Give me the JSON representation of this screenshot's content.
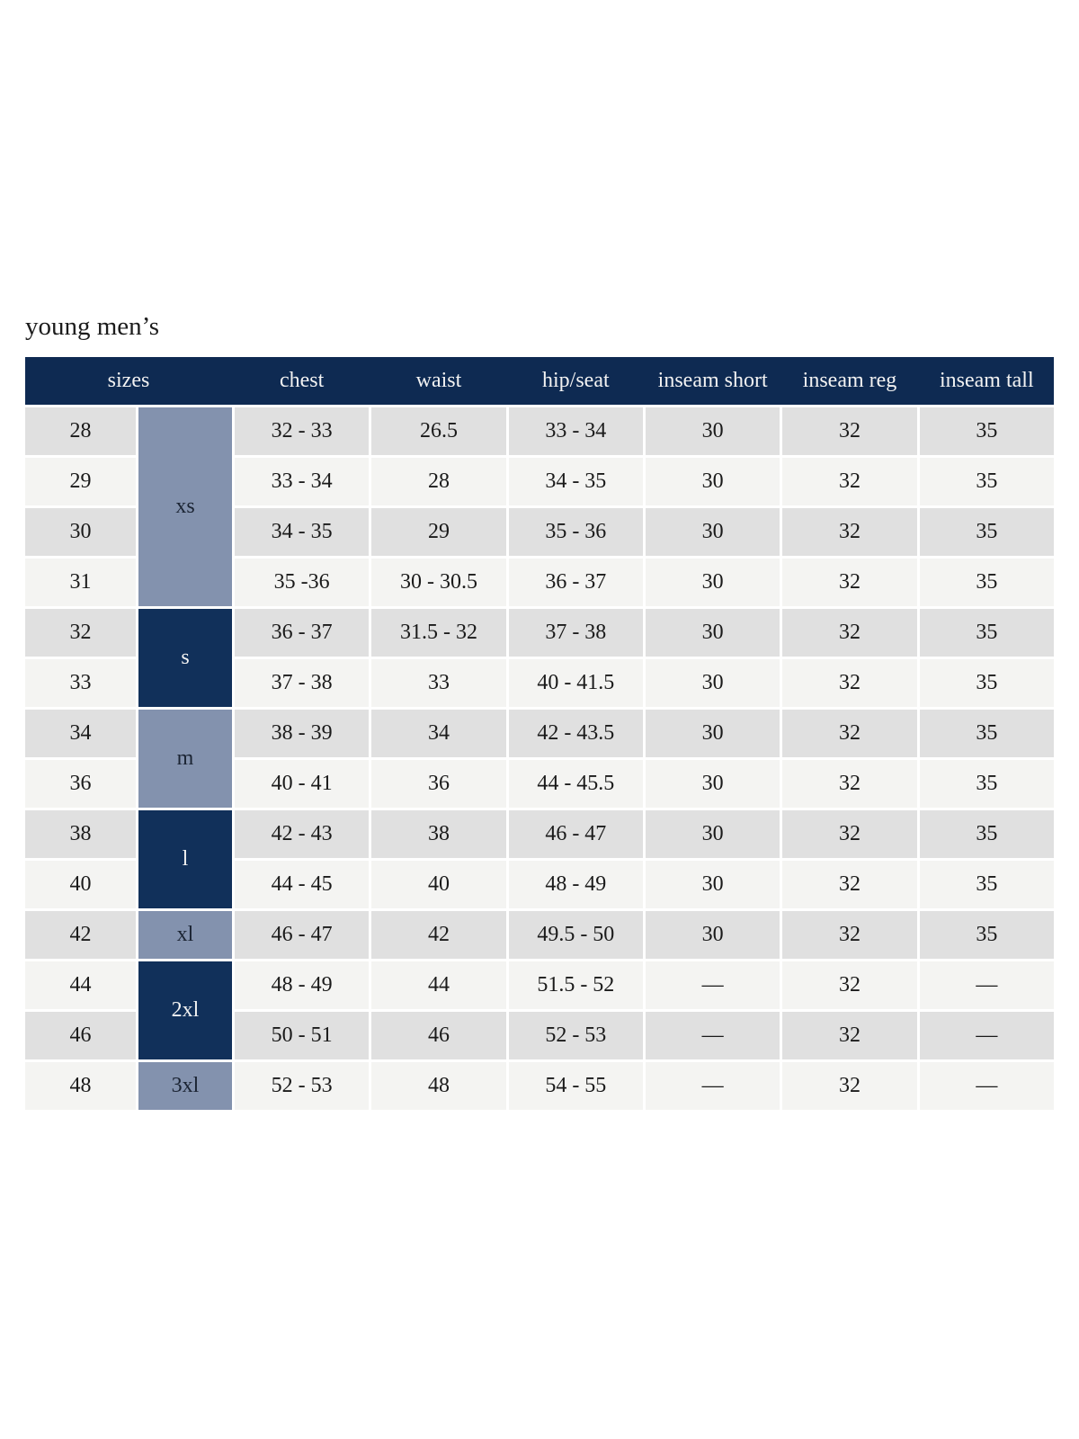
{
  "page": {
    "title": "young men’s"
  },
  "colors": {
    "header_navy": "#0e2a52",
    "group_navy": "#11305a",
    "group_steel_blue": "#8392ae",
    "row_stripe_gray": "#e0e0e0",
    "row_stripe_light": "#f4f4f2",
    "header_text": "#f2f2f2",
    "body_text": "#1a1a1a",
    "page_background": "#ffffff"
  },
  "table": {
    "header": {
      "sizes_label": "sizes",
      "measure_columns": [
        "chest",
        "waist",
        "hip/seat",
        "inseam short",
        "inseam reg",
        "inseam tall"
      ]
    },
    "column_keys": [
      "chest",
      "waist",
      "hip_seat",
      "inseam_short",
      "inseam_reg",
      "inseam_tall"
    ],
    "size_groups": [
      {
        "label": "xs",
        "row_span": 4,
        "style": "steel"
      },
      {
        "label": "s",
        "row_span": 2,
        "style": "navy"
      },
      {
        "label": "m",
        "row_span": 2,
        "style": "steel"
      },
      {
        "label": "l",
        "row_span": 2,
        "style": "navy"
      },
      {
        "label": "xl",
        "row_span": 1,
        "style": "steel"
      },
      {
        "label": "2xl",
        "row_span": 2,
        "style": "navy"
      },
      {
        "label": "3xl",
        "row_span": 1,
        "style": "steel"
      }
    ],
    "rows": [
      {
        "size": "28",
        "chest": "32 - 33",
        "waist": "26.5",
        "hip_seat": "33 - 34",
        "inseam_short": "30",
        "inseam_reg": "32",
        "inseam_tall": "35"
      },
      {
        "size": "29",
        "chest": "33 - 34",
        "waist": "28",
        "hip_seat": "34 - 35",
        "inseam_short": "30",
        "inseam_reg": "32",
        "inseam_tall": "35"
      },
      {
        "size": "30",
        "chest": "34 - 35",
        "waist": "29",
        "hip_seat": "35 - 36",
        "inseam_short": "30",
        "inseam_reg": "32",
        "inseam_tall": "35"
      },
      {
        "size": "31",
        "chest": "35 -36",
        "waist": "30 - 30.5",
        "hip_seat": "36 - 37",
        "inseam_short": "30",
        "inseam_reg": "32",
        "inseam_tall": "35"
      },
      {
        "size": "32",
        "chest": "36 - 37",
        "waist": "31.5 - 32",
        "hip_seat": "37 - 38",
        "inseam_short": "30",
        "inseam_reg": "32",
        "inseam_tall": "35"
      },
      {
        "size": "33",
        "chest": "37 - 38",
        "waist": "33",
        "hip_seat": "40 - 41.5",
        "inseam_short": "30",
        "inseam_reg": "32",
        "inseam_tall": "35"
      },
      {
        "size": "34",
        "chest": "38 - 39",
        "waist": "34",
        "hip_seat": "42 - 43.5",
        "inseam_short": "30",
        "inseam_reg": "32",
        "inseam_tall": "35"
      },
      {
        "size": "36",
        "chest": "40 - 41",
        "waist": "36",
        "hip_seat": "44 - 45.5",
        "inseam_short": "30",
        "inseam_reg": "32",
        "inseam_tall": "35"
      },
      {
        "size": "38",
        "chest": "42 - 43",
        "waist": "38",
        "hip_seat": "46 - 47",
        "inseam_short": "30",
        "inseam_reg": "32",
        "inseam_tall": "35"
      },
      {
        "size": "40",
        "chest": "44 - 45",
        "waist": "40",
        "hip_seat": "48 - 49",
        "inseam_short": "30",
        "inseam_reg": "32",
        "inseam_tall": "35"
      },
      {
        "size": "42",
        "chest": "46 - 47",
        "waist": "42",
        "hip_seat": "49.5 - 50",
        "inseam_short": "30",
        "inseam_reg": "32",
        "inseam_tall": "35"
      },
      {
        "size": "44",
        "chest": "48 - 49",
        "waist": "44",
        "hip_seat": "51.5 - 52",
        "inseam_short": "—",
        "inseam_reg": "32",
        "inseam_tall": "—"
      },
      {
        "size": "46",
        "chest": "50 - 51",
        "waist": "46",
        "hip_seat": "52 - 53",
        "inseam_short": "—",
        "inseam_reg": "32",
        "inseam_tall": "—"
      },
      {
        "size": "48",
        "chest": "52 - 53",
        "waist": "48",
        "hip_seat": "54 - 55",
        "inseam_short": "—",
        "inseam_reg": "32",
        "inseam_tall": "—"
      }
    ]
  }
}
